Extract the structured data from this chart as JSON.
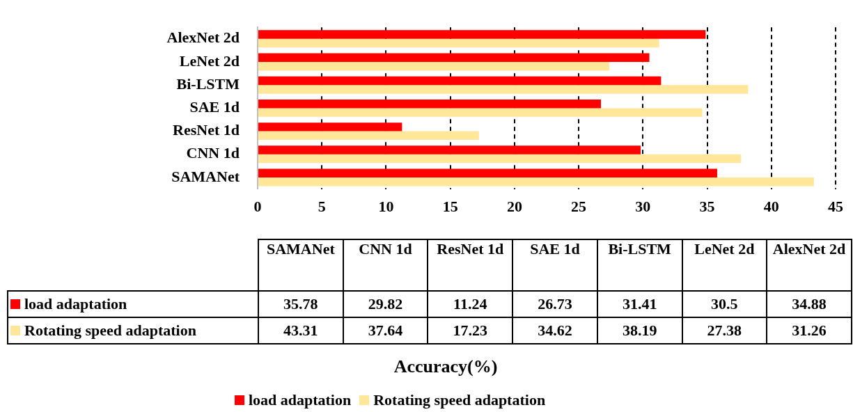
{
  "chart_data": [
    {
      "type": "bar",
      "orientation": "horizontal",
      "annotations": [
        "Accuracy(%)"
      ],
      "categories": [
        "AlexNet 2d",
        "LeNet 2d",
        "Bi-LSTM",
        "SAE 1d",
        "ResNet 1d",
        "CNN 1d",
        "SAMANet"
      ],
      "series": [
        {
          "name": "load adaptation",
          "color": "#ff0000",
          "values": [
            34.88,
            30.5,
            31.41,
            26.73,
            11.24,
            29.82,
            35.78
          ]
        },
        {
          "name": "Rotating speed adaptation",
          "color": "#ffe699",
          "values": [
            31.26,
            27.38,
            38.19,
            34.62,
            17.23,
            37.64,
            43.31
          ]
        }
      ],
      "xlim": [
        0,
        45
      ],
      "xticks": [
        0,
        5,
        10,
        15,
        20,
        25,
        30,
        35,
        40,
        45
      ],
      "grid": "x",
      "legend": "bottom"
    },
    {
      "type": "other",
      "categories": [
        "SAMANet",
        "CNN 1d",
        "ResNet 1d",
        "SAE 1d",
        "Bi-LSTM",
        "LeNet 2d",
        "AlexNet 2d"
      ],
      "series": [
        {
          "name": "load adaptation",
          "color": "#ff0000",
          "values": [
            35.78,
            29.82,
            11.24,
            26.73,
            31.41,
            30.5,
            34.88
          ]
        },
        {
          "name": "Rotating speed adaptation",
          "color": "#ffe699",
          "values": [
            43.31,
            37.64,
            17.23,
            34.62,
            38.19,
            27.38,
            31.26
          ]
        }
      ],
      "data_labels": true
    }
  ]
}
